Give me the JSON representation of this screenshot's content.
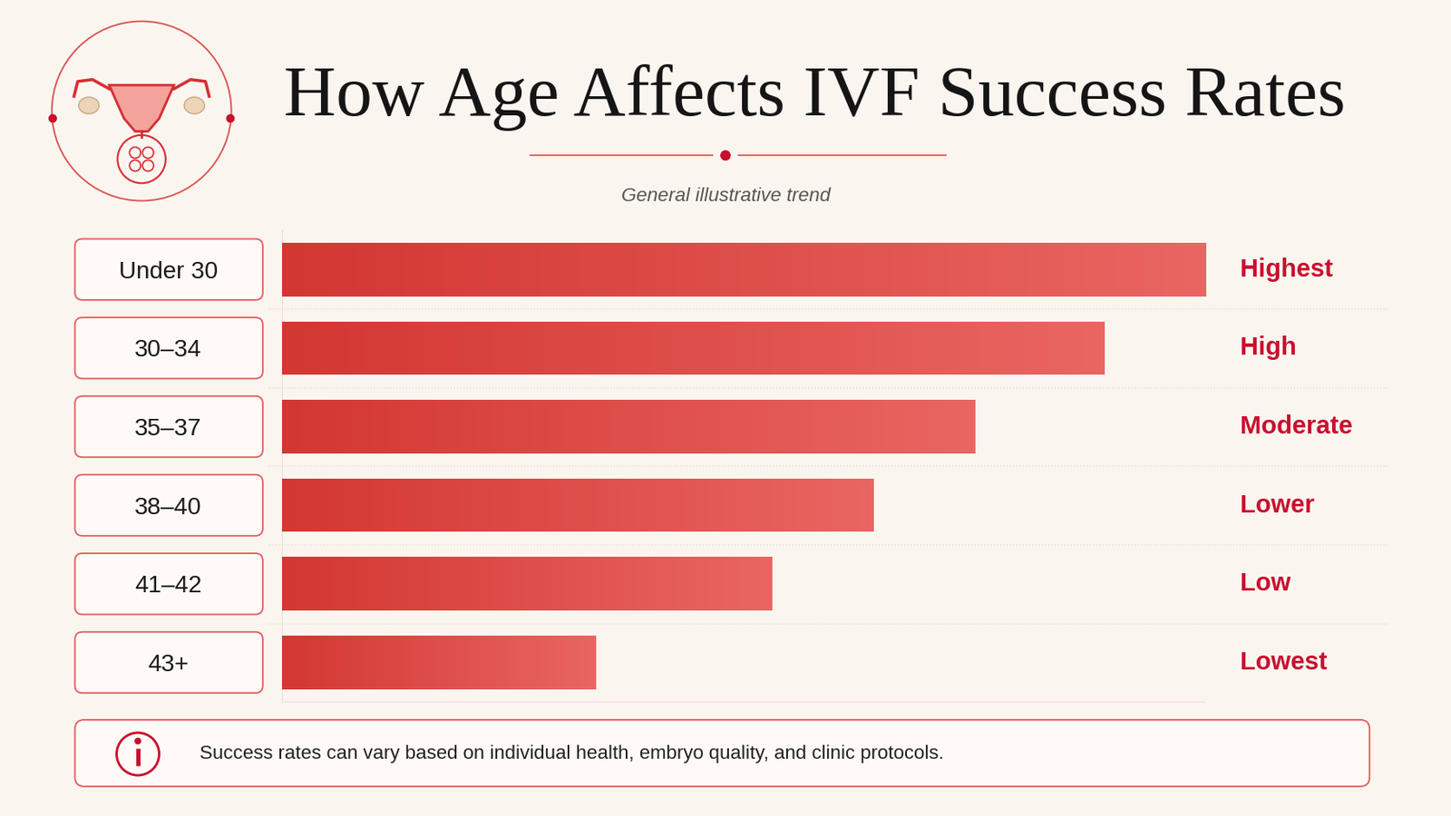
{
  "chart_data": {
    "type": "bar",
    "orientation": "horizontal",
    "title": "How Age Affects IVF Success Rates",
    "subtitle": "General illustrative trend",
    "categories": [
      "Under 30",
      "30–34",
      "35–37",
      "38–40",
      "41–42",
      "43+"
    ],
    "values": [
      100,
      89,
      75,
      64,
      53,
      34
    ],
    "color": "#e33b36",
    "annotations": [
      "Highest",
      "High",
      "Moderate",
      "Lower",
      "Low",
      "Lowest"
    ],
    "footnote": "Success rates can vary based on individual health, embryo quality, and clinic protocols.",
    "xlim": [
      0,
      100
    ],
    "xticks": [],
    "tick_labels": "y",
    "grid": false
  }
}
